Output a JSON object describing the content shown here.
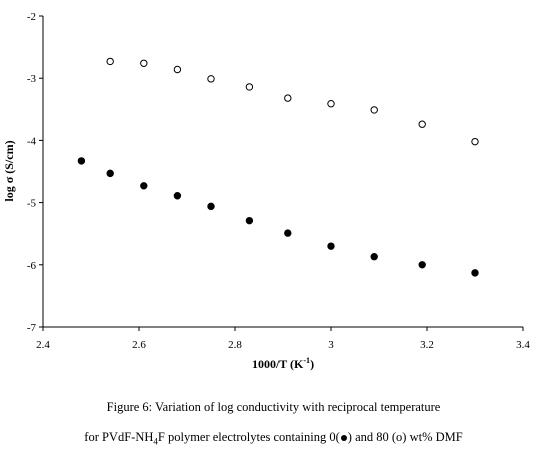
{
  "chart_data": {
    "type": "scatter",
    "xlabel": "1000/T (K",
    "xlabel_sup": "-1",
    "xlabel_suffix": ")",
    "ylabel": "log σ (S/cm)",
    "xlim": [
      2.4,
      3.4
    ],
    "ylim": [
      -7,
      -2
    ],
    "xticks": [
      "2.4",
      "2.6",
      "2.8",
      "3",
      "3.2",
      "3.4"
    ],
    "xtick_values": [
      2.4,
      2.6,
      2.8,
      3.0,
      3.2,
      3.4
    ],
    "yticks": [
      "-2",
      "-3",
      "-4",
      "-5",
      "-6",
      "-7"
    ],
    "ytick_values": [
      -2,
      -3,
      -4,
      -5,
      -6,
      -7
    ],
    "grid": false,
    "series": [
      {
        "marker": "filled-circle",
        "color": "#000000",
        "x": [
          2.48,
          2.54,
          2.61,
          2.68,
          2.75,
          2.83,
          2.91,
          3.0,
          3.09,
          3.19,
          3.3
        ],
        "y": [
          -4.33,
          -4.53,
          -4.73,
          -4.89,
          -5.06,
          -5.29,
          -5.49,
          -5.7,
          -5.87,
          -6.0,
          -6.13
        ]
      },
      {
        "marker": "open-circle",
        "color": "#000000",
        "x": [
          2.54,
          2.61,
          2.68,
          2.75,
          2.83,
          2.91,
          3.0,
          3.09,
          3.19,
          3.3
        ],
        "y": [
          -2.73,
          -2.76,
          -2.86,
          -3.01,
          -3.14,
          -3.32,
          -3.41,
          -3.51,
          -3.74,
          -4.02
        ]
      }
    ]
  },
  "caption": {
    "line1": "Figure 6: Variation of log conductivity with reciprocal temperature",
    "line2_prefix": "for PVdF-NH",
    "line2_sub": "4",
    "line2_middle": "F polymer electrolytes containing 0(",
    "line2_after_dot": ") and  80 (o) wt% DMF"
  }
}
